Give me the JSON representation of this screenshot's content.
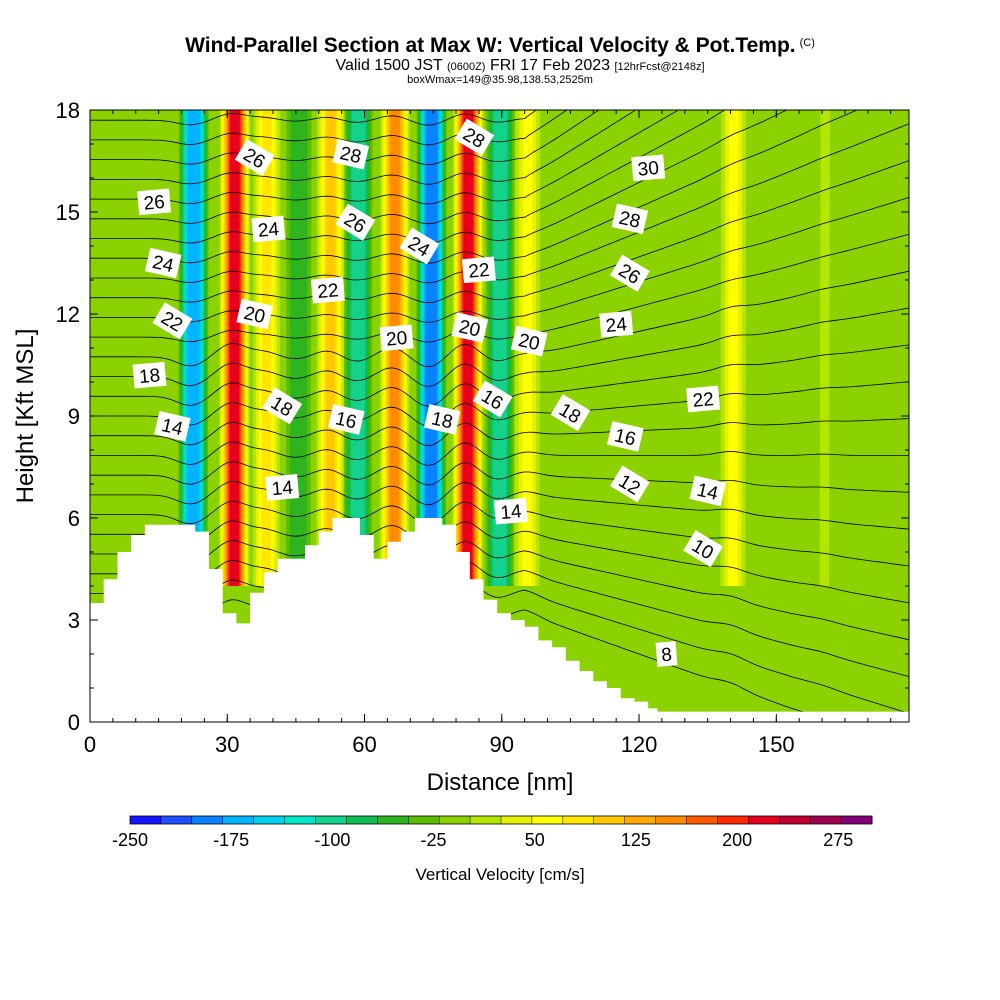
{
  "title": {
    "main": "Wind-Parallel Section at Max W: Vertical Velocity & Pot.Temp.",
    "copyright": "(C)",
    "valid_prefix": "Valid 1500 JST",
    "valid_utc": "(0600Z)",
    "valid_date": "FRI 17 Feb 2023",
    "forecast": "[12hrFcst@2148z]",
    "box_info": "boxWmax=149@35.98,138.53,2525m"
  },
  "chart_data": {
    "type": "heatmap",
    "xlabel": "Distance [nm]",
    "ylabel": "Height [Kft MSL]",
    "xlim": [
      0,
      179
    ],
    "ylim": [
      0,
      18
    ],
    "x_ticks": [
      "0",
      "30",
      "60",
      "90",
      "120",
      "150"
    ],
    "y_ticks": [
      "0",
      "3",
      "6",
      "9",
      "12",
      "15",
      "18"
    ],
    "colorbar": {
      "title": "Vertical Velocity [cm/s]",
      "range": [
        -250,
        300
      ],
      "step": 25,
      "tick_labels": [
        "-250",
        "-175",
        "-100",
        "-25",
        "50",
        "125",
        "200",
        "275"
      ],
      "colors": [
        "#1414ff",
        "#1e50ff",
        "#0a82ff",
        "#00b4ff",
        "#00d2ee",
        "#00e6c8",
        "#14d28c",
        "#0fbe50",
        "#2db41e",
        "#5abe00",
        "#8cd200",
        "#b4e600",
        "#e6f000",
        "#ffff00",
        "#ffe600",
        "#ffc800",
        "#ffaa00",
        "#ff8c00",
        "#ff5a00",
        "#ff2800",
        "#e6001e",
        "#be0032",
        "#a00050",
        "#820078"
      ]
    },
    "terrain": {
      "distance_nm": [
        0,
        3,
        6,
        9,
        12,
        16,
        20,
        23,
        26,
        29,
        32,
        35,
        38,
        41,
        44,
        47,
        50,
        53,
        56,
        59,
        62,
        65,
        68,
        71,
        74,
        77,
        80,
        83,
        86,
        89,
        92,
        95,
        98,
        101,
        104,
        107,
        110,
        113,
        116,
        119,
        122,
        124,
        126,
        179
      ],
      "height_kft": [
        3.5,
        4.2,
        5.0,
        5.5,
        5.8,
        5.8,
        5.8,
        5.6,
        4.5,
        3.2,
        2.9,
        3.8,
        4.4,
        4.8,
        4.8,
        5.2,
        5.6,
        6.0,
        6.0,
        5.5,
        4.8,
        5.3,
        5.6,
        6.0,
        6.0,
        5.8,
        5.0,
        4.2,
        3.6,
        3.2,
        3.0,
        2.8,
        2.4,
        2.2,
        1.8,
        1.5,
        1.2,
        1.0,
        0.7,
        0.6,
        0.4,
        0.3,
        0.3,
        0.3
      ]
    },
    "wave_bands_w_cm_s": [
      {
        "distance_nm": 22,
        "peak_w": -175
      },
      {
        "distance_nm": 31,
        "peak_w": 250
      },
      {
        "distance_nm": 38,
        "peak_w": 100
      },
      {
        "distance_nm": 45,
        "peak_w": -50
      },
      {
        "distance_nm": 52,
        "peak_w": 125
      },
      {
        "distance_nm": 58,
        "peak_w": -100
      },
      {
        "distance_nm": 66,
        "peak_w": 175
      },
      {
        "distance_nm": 74,
        "peak_w": -200
      },
      {
        "distance_nm": 82,
        "peak_w": 250
      },
      {
        "distance_nm": 89,
        "peak_w": -100
      },
      {
        "distance_nm": 95,
        "peak_w": 75
      },
      {
        "distance_nm": 140,
        "peak_w": 75
      },
      {
        "distance_nm": 160,
        "peak_w": 25
      }
    ],
    "isentrope_labels": [
      {
        "text": "26",
        "x_nm": 14,
        "y_kft": 15.3
      },
      {
        "text": "24",
        "x_nm": 16,
        "y_kft": 13.5
      },
      {
        "text": "22",
        "x_nm": 18,
        "y_kft": 11.8
      },
      {
        "text": "18",
        "x_nm": 13,
        "y_kft": 10.2
      },
      {
        "text": "14",
        "x_nm": 18,
        "y_kft": 8.7
      },
      {
        "text": "26",
        "x_nm": 36,
        "y_kft": 16.6
      },
      {
        "text": "24",
        "x_nm": 39,
        "y_kft": 14.5
      },
      {
        "text": "20",
        "x_nm": 36,
        "y_kft": 12.0
      },
      {
        "text": "18",
        "x_nm": 42,
        "y_kft": 9.3
      },
      {
        "text": "14",
        "x_nm": 42,
        "y_kft": 6.9
      },
      {
        "text": "28",
        "x_nm": 57,
        "y_kft": 16.7
      },
      {
        "text": "26",
        "x_nm": 58,
        "y_kft": 14.7
      },
      {
        "text": "22",
        "x_nm": 52,
        "y_kft": 12.7
      },
      {
        "text": "16",
        "x_nm": 56,
        "y_kft": 8.9
      },
      {
        "text": "24",
        "x_nm": 72,
        "y_kft": 14.0
      },
      {
        "text": "20",
        "x_nm": 67,
        "y_kft": 11.3
      },
      {
        "text": "18",
        "x_nm": 77,
        "y_kft": 8.9
      },
      {
        "text": "28",
        "x_nm": 84,
        "y_kft": 17.2
      },
      {
        "text": "22",
        "x_nm": 85,
        "y_kft": 13.3
      },
      {
        "text": "20",
        "x_nm": 83,
        "y_kft": 11.6
      },
      {
        "text": "16",
        "x_nm": 88,
        "y_kft": 9.5
      },
      {
        "text": "14",
        "x_nm": 92,
        "y_kft": 6.2
      },
      {
        "text": "20",
        "x_nm": 96,
        "y_kft": 11.2
      },
      {
        "text": "18",
        "x_nm": 105,
        "y_kft": 9.1
      },
      {
        "text": "30",
        "x_nm": 122,
        "y_kft": 16.3
      },
      {
        "text": "28",
        "x_nm": 118,
        "y_kft": 14.8
      },
      {
        "text": "26",
        "x_nm": 118,
        "y_kft": 13.2
      },
      {
        "text": "24",
        "x_nm": 115,
        "y_kft": 11.7
      },
      {
        "text": "16",
        "x_nm": 117,
        "y_kft": 8.4
      },
      {
        "text": "12",
        "x_nm": 118,
        "y_kft": 7.0
      },
      {
        "text": "22",
        "x_nm": 134,
        "y_kft": 9.5
      },
      {
        "text": "14",
        "x_nm": 135,
        "y_kft": 6.8
      },
      {
        "text": "10",
        "x_nm": 134,
        "y_kft": 5.1
      },
      {
        "text": "8",
        "x_nm": 126,
        "y_kft": 2.0
      }
    ]
  }
}
